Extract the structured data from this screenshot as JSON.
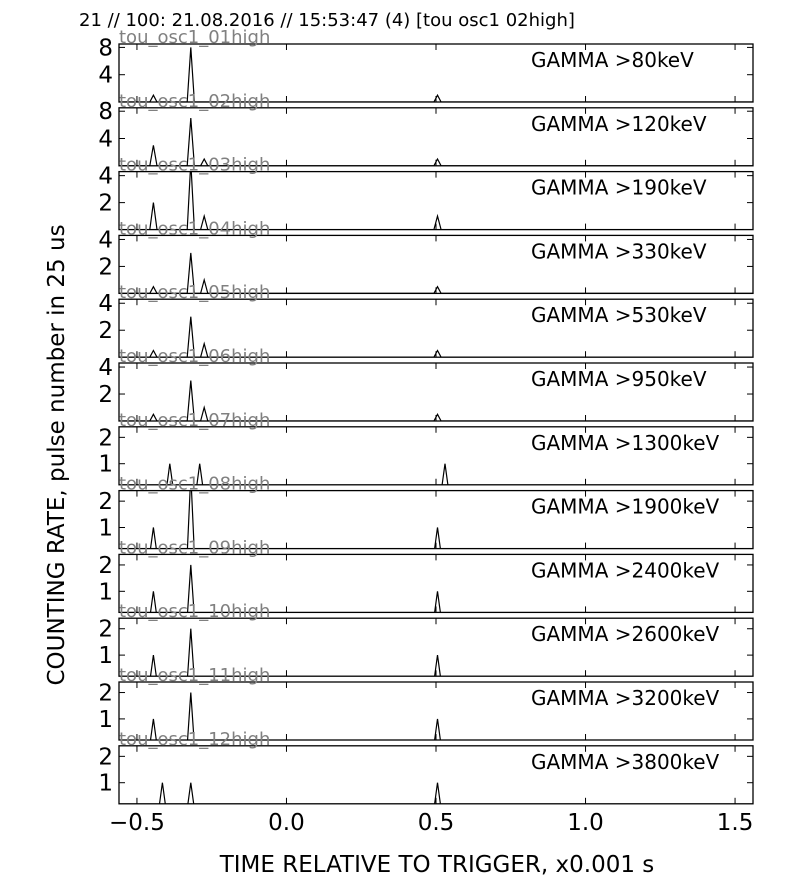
{
  "chart_data": {
    "type": "line",
    "suptitle": "21 // 100:   21.08.2016 // 15:53:47 (4)  [tou osc1 02high]",
    "xlabel": "TIME RELATIVE TO TRIGGER,   x0.001 s",
    "ylabel": "COUNTING RATE,    pulse number in 25 us",
    "xlim": [
      -0.56,
      1.56
    ],
    "xticks": [
      -0.5,
      0.0,
      0.5,
      1.0,
      1.5
    ],
    "xtick_labels": [
      "−0.5",
      "0.0",
      "0.5",
      "1.0",
      "1.5"
    ],
    "panels": [
      {
        "channel": "tou_osc1_01high",
        "label": "GAMMA >80keV",
        "ylim": [
          0,
          8.5
        ],
        "yticks": [
          4,
          8
        ],
        "peaks": [
          [
            -0.445,
            1
          ],
          [
            -0.32,
            8
          ],
          [
            -0.275,
            0
          ],
          [
            0.505,
            1
          ]
        ]
      },
      {
        "channel": "tou_osc1_02high",
        "label": "GAMMA >120keV",
        "ylim": [
          0,
          8.5
        ],
        "yticks": [
          4,
          8
        ],
        "peaks": [
          [
            -0.445,
            3
          ],
          [
            -0.32,
            7
          ],
          [
            -0.275,
            1
          ],
          [
            0.505,
            1
          ]
        ]
      },
      {
        "channel": "tou_osc1_03high",
        "label": "GAMMA >190keV",
        "ylim": [
          0,
          4.3
        ],
        "yticks": [
          2,
          4
        ],
        "peaks": [
          [
            -0.445,
            2
          ],
          [
            -0.32,
            5
          ],
          [
            -0.275,
            1
          ],
          [
            0.505,
            1
          ]
        ]
      },
      {
        "channel": "tou_osc1_04high",
        "label": "GAMMA >330keV",
        "ylim": [
          0,
          4.3
        ],
        "yticks": [
          2,
          4
        ],
        "peaks": [
          [
            -0.445,
            0.5
          ],
          [
            -0.32,
            3
          ],
          [
            -0.275,
            1
          ],
          [
            0.505,
            0.5
          ]
        ]
      },
      {
        "channel": "tou_osc1_05high",
        "label": "GAMMA >530keV",
        "ylim": [
          0,
          4.3
        ],
        "yticks": [
          2,
          4
        ],
        "peaks": [
          [
            -0.445,
            0.5
          ],
          [
            -0.32,
            3
          ],
          [
            -0.275,
            1
          ],
          [
            0.505,
            0.5
          ]
        ]
      },
      {
        "channel": "tou_osc1_06high",
        "label": "GAMMA >950keV",
        "ylim": [
          0,
          4.3
        ],
        "yticks": [
          2,
          4
        ],
        "peaks": [
          [
            -0.445,
            0.5
          ],
          [
            -0.32,
            3
          ],
          [
            -0.275,
            1
          ],
          [
            0.505,
            0.5
          ]
        ]
      },
      {
        "channel": "tou_osc1_07high",
        "label": "GAMMA >1300keV",
        "ylim": [
          0.2,
          2.4
        ],
        "yticks": [
          1,
          2
        ],
        "peaks": [
          [
            -0.39,
            1
          ],
          [
            -0.29,
            1
          ],
          [
            0.53,
            1
          ]
        ]
      },
      {
        "channel": "tou_osc1_08high",
        "label": "GAMMA >1900keV",
        "ylim": [
          0.2,
          2.4
        ],
        "yticks": [
          1,
          2
        ],
        "peaks": [
          [
            -0.445,
            1
          ],
          [
            -0.32,
            3
          ],
          [
            0.505,
            1
          ]
        ]
      },
      {
        "channel": "tou_osc1_09high",
        "label": "GAMMA >2400keV",
        "ylim": [
          0.2,
          2.4
        ],
        "yticks": [
          1,
          2
        ],
        "peaks": [
          [
            -0.445,
            1
          ],
          [
            -0.32,
            2
          ],
          [
            0.505,
            1
          ]
        ]
      },
      {
        "channel": "tou_osc1_10high",
        "label": "GAMMA >2600keV",
        "ylim": [
          0.2,
          2.4
        ],
        "yticks": [
          1,
          2
        ],
        "peaks": [
          [
            -0.445,
            1
          ],
          [
            -0.32,
            2
          ],
          [
            0.505,
            1
          ]
        ]
      },
      {
        "channel": "tou_osc1_11high",
        "label": "GAMMA >3200keV",
        "ylim": [
          0.2,
          2.4
        ],
        "yticks": [
          1,
          2
        ],
        "peaks": [
          [
            -0.445,
            1
          ],
          [
            -0.32,
            2
          ],
          [
            0.505,
            1
          ]
        ]
      },
      {
        "channel": "tou_osc1_12high",
        "label": "GAMMA >3800keV",
        "ylim": [
          0.2,
          2.4
        ],
        "yticks": [
          1,
          2
        ],
        "peaks": [
          [
            -0.415,
            1
          ],
          [
            -0.32,
            1
          ],
          [
            0.505,
            1
          ]
        ]
      }
    ]
  }
}
